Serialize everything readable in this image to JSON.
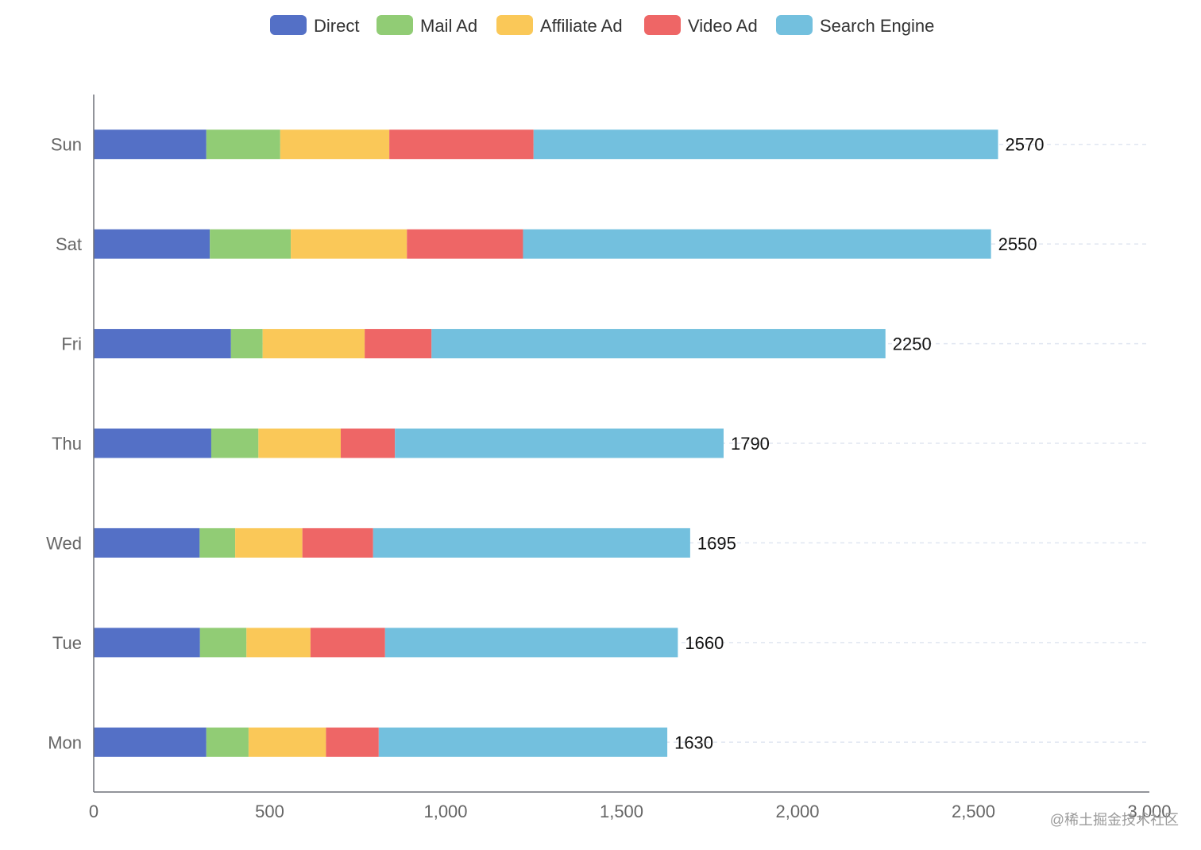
{
  "chart_data": {
    "type": "bar",
    "orientation": "horizontal",
    "stacked": true,
    "categories": [
      "Mon",
      "Tue",
      "Wed",
      "Thu",
      "Fri",
      "Sat",
      "Sun"
    ],
    "series": [
      {
        "name": "Direct",
        "color": "#5470c6",
        "values": [
          320,
          302,
          301,
          334,
          390,
          330,
          320
        ]
      },
      {
        "name": "Mail Ad",
        "color": "#91cc75",
        "values": [
          120,
          132,
          101,
          134,
          90,
          230,
          210
        ]
      },
      {
        "name": "Affiliate Ad",
        "color": "#fac858",
        "values": [
          220,
          182,
          191,
          234,
          290,
          330,
          310
        ]
      },
      {
        "name": "Video Ad",
        "color": "#ee6666",
        "values": [
          150,
          212,
          201,
          154,
          190,
          330,
          410
        ]
      },
      {
        "name": "Search Engine",
        "color": "#73c0de",
        "values": [
          820,
          832,
          901,
          934,
          1290,
          1330,
          1320
        ]
      }
    ],
    "totals": [
      "1630",
      "1660",
      "1695",
      "1790",
      "2250",
      "2550",
      "2570"
    ],
    "xlim": [
      0,
      3000
    ],
    "x_ticks": [
      0,
      500,
      1000,
      1500,
      2000,
      2500,
      3000
    ],
    "x_tick_labels": [
      "0",
      "500",
      "1,000",
      "1,500",
      "2,000",
      "2,500",
      "3,000"
    ],
    "legend_position": "top-center",
    "grid": "dashed horizontal lines at category rows",
    "title": "",
    "xlabel": "",
    "ylabel": ""
  },
  "watermark": "@稀土掘金技术社区"
}
